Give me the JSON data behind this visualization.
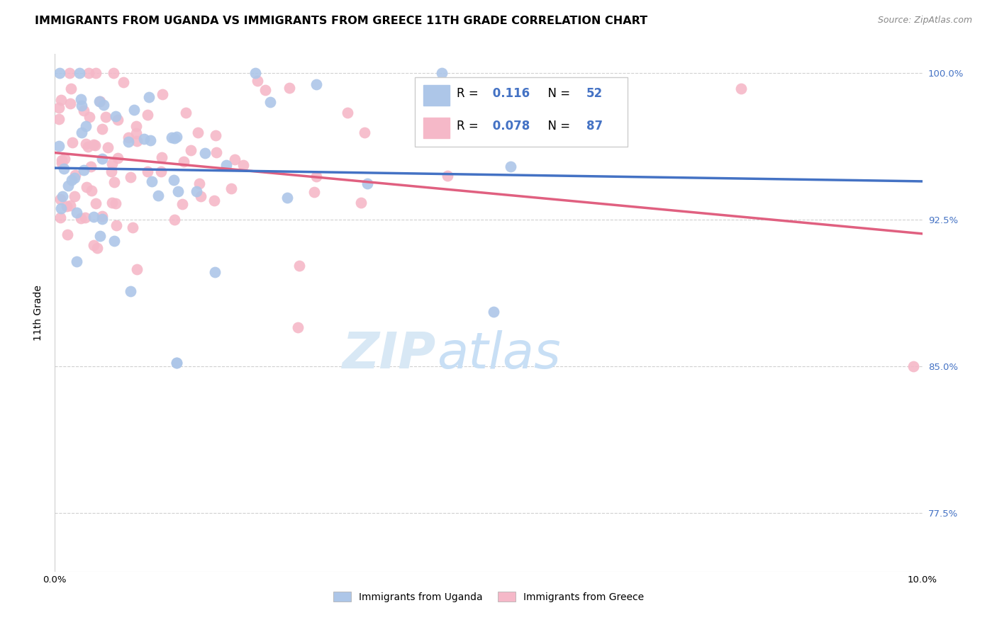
{
  "title": "IMMIGRANTS FROM UGANDA VS IMMIGRANTS FROM GREECE 11TH GRADE CORRELATION CHART",
  "source": "Source: ZipAtlas.com",
  "ylabel": "11th Grade",
  "legend_label1": "Immigrants from Uganda",
  "legend_label2": "Immigrants from Greece",
  "R1": 0.116,
  "N1": 52,
  "R2": 0.078,
  "N2": 87,
  "color_uganda": "#adc6e8",
  "color_greece": "#f5b8c8",
  "line_color_uganda": "#4472c4",
  "line_color_greece": "#e06080",
  "watermark_zip": "ZIP",
  "watermark_atlas": "atlas",
  "xmin": 0.0,
  "xmax": 0.1,
  "ymin": 0.745,
  "ymax": 1.01,
  "yticks": [
    0.775,
    0.85,
    0.925,
    1.0
  ],
  "ytick_labels": [
    "77.5%",
    "85.0%",
    "92.5%",
    "100.0%"
  ],
  "xticks": [
    0.0,
    0.02,
    0.04,
    0.06,
    0.08,
    0.1
  ],
  "xtick_labels": [
    "0.0%",
    "",
    "",
    "",
    "",
    "10.0%"
  ],
  "background_color": "#ffffff",
  "grid_color": "#d0d0d0",
  "title_fontsize": 11.5,
  "axis_label_fontsize": 10,
  "tick_fontsize": 9.5,
  "legend_fontsize": 12,
  "source_fontsize": 9,
  "watermark_fontsize_zip": 52,
  "watermark_fontsize_atlas": 52,
  "watermark_color": "#d8e8f5",
  "right_tick_color": "#4472c4",
  "marker_size": 130,
  "line_width": 2.5
}
